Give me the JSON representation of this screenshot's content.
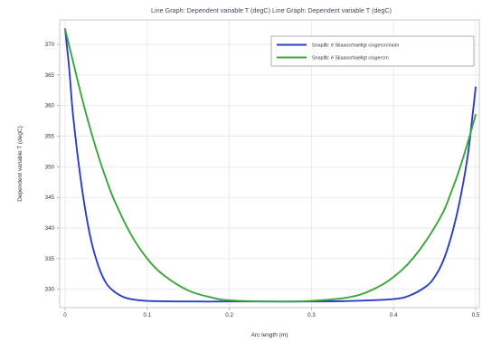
{
  "chart_data": {
    "type": "line",
    "title": "Line Graph: Dependent variable T (degC) Line Graph: Dependent variable T (degC)",
    "xlabel": "Arc length (m)",
    "ylabel": "Dependent variable T (degC)",
    "xlim": [
      0,
      0.5
    ],
    "ylim": [
      327,
      374
    ],
    "x_ticks": [
      "0",
      "0.1",
      "0.2",
      "0.3",
      "0.4",
      "0.5"
    ],
    "y_ticks": [
      "330",
      "335",
      "340",
      "345",
      "350",
      "355",
      "360",
      "365",
      "370"
    ],
    "grid": true,
    "legend_position": "top-right",
    "series": [
      {
        "name": "Snapllb: é Sliaaocrhaellgt c/ugercrchaim",
        "color": "#2c3fc4",
        "x": [
          0,
          0.005,
          0.01,
          0.02,
          0.03,
          0.04,
          0.05,
          0.06,
          0.07,
          0.08,
          0.1,
          0.15,
          0.2,
          0.25,
          0.3,
          0.35,
          0.4,
          0.42,
          0.44,
          0.45,
          0.46,
          0.47,
          0.48,
          0.49,
          0.495,
          0.5
        ],
        "y": [
          372.5,
          366,
          358,
          347,
          339,
          334,
          331,
          329.6,
          328.8,
          328.4,
          328.1,
          328.0,
          328.0,
          328.0,
          328.0,
          328.1,
          328.4,
          329.0,
          330.5,
          332,
          334.5,
          338.5,
          344,
          351.5,
          357,
          363
        ]
      },
      {
        "name": "Snapllb: é Sliaaocrhaellgt c/ugercrn",
        "color": "#3aa63a",
        "x": [
          0,
          0.01,
          0.02,
          0.03,
          0.04,
          0.05,
          0.06,
          0.08,
          0.1,
          0.12,
          0.15,
          0.18,
          0.2,
          0.25,
          0.3,
          0.35,
          0.38,
          0.4,
          0.42,
          0.44,
          0.46,
          0.47,
          0.48,
          0.49,
          0.5
        ],
        "y": [
          372.5,
          367,
          361.5,
          356.5,
          352,
          348,
          344.5,
          339,
          335,
          332.3,
          329.8,
          328.6,
          328.2,
          328.0,
          328.1,
          328.8,
          330.3,
          332,
          334.5,
          338,
          342.5,
          345.8,
          349.5,
          353.8,
          358.5
        ]
      }
    ]
  }
}
